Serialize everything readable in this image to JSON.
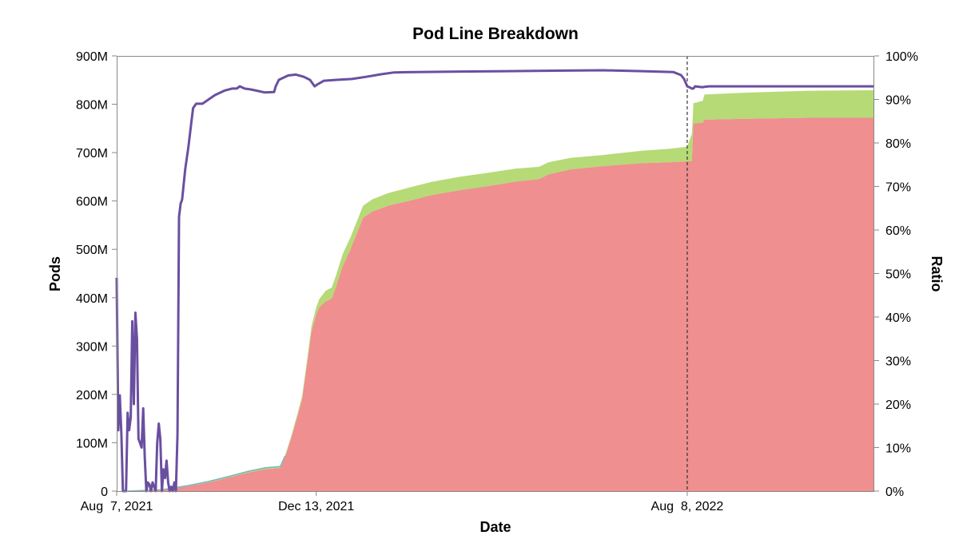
{
  "chart_data": {
    "type": "area",
    "title": "Pod Line Breakdown",
    "xlabel": "Date",
    "ylabel_left": "Pods",
    "ylabel_right": "Ratio",
    "x_ticks": [
      "Aug  7, 2021",
      "Dec 13, 2021",
      "Aug  8, 2022"
    ],
    "y_left_ticks": [
      "0",
      "100M",
      "200M",
      "300M",
      "400M",
      "500M",
      "600M",
      "700M",
      "800M",
      "900M"
    ],
    "y_right_ticks": [
      "0%",
      "10%",
      "20%",
      "30%",
      "40%",
      "50%",
      "60%",
      "70%",
      "80%",
      "90%",
      "100%"
    ],
    "ylim_left": [
      0,
      900000000
    ],
    "ylim_right": [
      0,
      1
    ],
    "grid": false,
    "legend": "none",
    "reference_line": {
      "date": "2022-08-08",
      "style": "dashed"
    },
    "colors": {
      "harvested": "#ef8f8f",
      "harvestable": "#b6da76",
      "minor_band": "#74b9c0",
      "ratio": "#6a4fa0"
    },
    "series": [
      {
        "key": "harvested",
        "kind": "stacked-area",
        "points": [
          [
            "2021-08-14",
            0
          ],
          [
            "2021-09-05",
            2000000
          ],
          [
            "2021-09-22",
            10000000
          ],
          [
            "2021-10-05",
            18000000
          ],
          [
            "2021-10-18",
            28000000
          ],
          [
            "2021-10-30",
            38000000
          ],
          [
            "2021-11-10",
            45000000
          ],
          [
            "2021-11-20",
            48000000
          ],
          [
            "2021-11-23",
            70000000
          ],
          [
            "2021-11-27",
            110000000
          ],
          [
            "2021-12-01",
            155000000
          ],
          [
            "2021-12-04",
            190000000
          ],
          [
            "2021-12-07",
            260000000
          ],
          [
            "2021-12-10",
            330000000
          ],
          [
            "2021-12-13",
            365000000
          ],
          [
            "2021-12-15",
            380000000
          ],
          [
            "2021-12-19",
            392000000
          ],
          [
            "2021-12-23",
            398000000
          ],
          [
            "2021-12-26",
            425000000
          ],
          [
            "2021-12-30",
            465000000
          ],
          [
            "2022-01-04",
            500000000
          ],
          [
            "2022-01-09",
            540000000
          ],
          [
            "2022-01-12",
            565000000
          ],
          [
            "2022-01-18",
            578000000
          ],
          [
            "2022-01-28",
            590000000
          ],
          [
            "2022-02-10",
            600000000
          ],
          [
            "2022-02-25",
            612000000
          ],
          [
            "2022-03-15",
            622000000
          ],
          [
            "2022-04-01",
            630000000
          ],
          [
            "2022-04-20",
            640000000
          ],
          [
            "2022-05-05",
            645000000
          ],
          [
            "2022-05-11",
            655000000
          ],
          [
            "2022-05-25",
            665000000
          ],
          [
            "2022-06-15",
            672000000
          ],
          [
            "2022-07-10",
            678000000
          ],
          [
            "2022-07-28",
            680000000
          ],
          [
            "2022-08-08",
            682000000
          ],
          [
            "2022-08-11",
            682000000
          ],
          [
            "2022-08-12",
            760000000
          ],
          [
            "2022-08-18",
            762000000
          ],
          [
            "2022-08-19",
            768000000
          ],
          [
            "2022-09-15",
            770000000
          ],
          [
            "2022-10-25",
            772000000
          ],
          [
            "2022-12-06",
            772000000
          ]
        ]
      },
      {
        "key": "harvestable",
        "kind": "stacked-area",
        "points": [
          [
            "2021-08-14",
            0
          ],
          [
            "2021-09-05",
            1000000
          ],
          [
            "2021-10-05",
            2000000
          ],
          [
            "2021-11-10",
            3000000
          ],
          [
            "2021-11-27",
            4000000
          ],
          [
            "2021-12-07",
            8000000
          ],
          [
            "2021-12-13",
            15000000
          ],
          [
            "2021-12-19",
            22000000
          ],
          [
            "2021-12-30",
            25000000
          ],
          [
            "2022-01-12",
            25000000
          ],
          [
            "2022-02-10",
            27000000
          ],
          [
            "2022-03-15",
            28000000
          ],
          [
            "2022-04-20",
            27000000
          ],
          [
            "2022-05-11",
            25000000
          ],
          [
            "2022-06-15",
            23000000
          ],
          [
            "2022-07-28",
            28000000
          ],
          [
            "2022-08-08",
            30000000
          ],
          [
            "2022-08-11",
            57000000
          ],
          [
            "2022-08-12",
            42000000
          ],
          [
            "2022-08-18",
            45000000
          ],
          [
            "2022-08-19",
            52000000
          ],
          [
            "2022-09-15",
            54000000
          ],
          [
            "2022-10-25",
            56000000
          ],
          [
            "2022-12-06",
            57000000
          ]
        ]
      },
      {
        "key": "ratio",
        "kind": "line",
        "axis": "right",
        "points": [
          [
            "2021-08-07",
            0.49
          ],
          [
            "2021-08-08",
            0.14
          ],
          [
            "2021-08-09",
            0.22
          ],
          [
            "2021-08-10",
            0.13
          ],
          [
            "2021-08-11",
            0.0
          ],
          [
            "2021-08-13",
            0.0
          ],
          [
            "2021-08-14",
            0.18
          ],
          [
            "2021-08-15",
            0.14
          ],
          [
            "2021-08-16",
            0.17
          ],
          [
            "2021-08-17",
            0.39
          ],
          [
            "2021-08-18",
            0.2
          ],
          [
            "2021-08-19",
            0.41
          ],
          [
            "2021-08-20",
            0.35
          ],
          [
            "2021-08-21",
            0.12
          ],
          [
            "2021-08-22",
            0.11
          ],
          [
            "2021-08-23",
            0.1
          ],
          [
            "2021-08-24",
            0.19
          ],
          [
            "2021-08-25",
            0.08
          ],
          [
            "2021-08-26",
            0.0
          ],
          [
            "2021-08-27",
            0.02
          ],
          [
            "2021-08-28",
            0.015
          ],
          [
            "2021-08-29",
            0.0
          ],
          [
            "2021-08-30",
            0.02
          ],
          [
            "2021-09-01",
            0.0
          ],
          [
            "2021-09-02",
            0.11
          ],
          [
            "2021-09-03",
            0.155
          ],
          [
            "2021-09-04",
            0.12
          ],
          [
            "2021-09-05",
            0.0
          ],
          [
            "2021-09-06",
            0.05
          ],
          [
            "2021-09-07",
            0.03
          ],
          [
            "2021-09-08",
            0.07
          ],
          [
            "2021-09-09",
            0.02
          ],
          [
            "2021-09-10",
            0.0
          ],
          [
            "2021-09-11",
            0.01
          ],
          [
            "2021-09-12",
            0.0
          ],
          [
            "2021-09-13",
            0.02
          ],
          [
            "2021-09-14",
            0.0
          ],
          [
            "2021-09-15",
            0.13
          ],
          [
            "2021-09-16",
            0.63
          ],
          [
            "2021-09-17",
            0.66
          ],
          [
            "2021-09-18",
            0.67
          ],
          [
            "2021-09-20",
            0.74
          ],
          [
            "2021-09-22",
            0.79
          ],
          [
            "2021-09-24",
            0.85
          ],
          [
            "2021-09-25",
            0.88
          ],
          [
            "2021-09-27",
            0.89
          ],
          [
            "2021-10-01",
            0.89
          ],
          [
            "2021-10-05",
            0.9
          ],
          [
            "2021-10-09",
            0.91
          ],
          [
            "2021-10-15",
            0.92
          ],
          [
            "2021-10-20",
            0.925
          ],
          [
            "2021-10-23",
            0.925
          ],
          [
            "2021-10-25",
            0.93
          ],
          [
            "2021-10-28",
            0.925
          ],
          [
            "2021-11-01",
            0.923
          ],
          [
            "2021-11-05",
            0.92
          ],
          [
            "2021-11-10",
            0.916
          ],
          [
            "2021-11-16",
            0.917
          ],
          [
            "2021-11-17",
            0.93
          ],
          [
            "2021-11-19",
            0.945
          ],
          [
            "2021-11-25",
            0.955
          ],
          [
            "2021-11-30",
            0.957
          ],
          [
            "2021-12-05",
            0.952
          ],
          [
            "2021-12-09",
            0.945
          ],
          [
            "2021-12-12",
            0.93
          ],
          [
            "2021-12-14",
            0.935
          ],
          [
            "2021-12-18",
            0.943
          ],
          [
            "2021-12-26",
            0.945
          ],
          [
            "2022-01-05",
            0.947
          ],
          [
            "2022-01-14",
            0.952
          ],
          [
            "2022-01-24",
            0.958
          ],
          [
            "2022-02-01",
            0.962
          ],
          [
            "2022-02-15",
            0.963
          ],
          [
            "2022-03-15",
            0.964
          ],
          [
            "2022-04-15",
            0.965
          ],
          [
            "2022-05-15",
            0.966
          ],
          [
            "2022-06-15",
            0.967
          ],
          [
            "2022-07-10",
            0.965
          ],
          [
            "2022-07-30",
            0.963
          ],
          [
            "2022-08-04",
            0.956
          ],
          [
            "2022-08-06",
            0.947
          ],
          [
            "2022-08-08",
            0.93
          ],
          [
            "2022-08-10",
            0.927
          ],
          [
            "2022-08-11",
            0.925
          ],
          [
            "2022-08-12",
            0.925
          ],
          [
            "2022-08-13",
            0.93
          ],
          [
            "2022-08-18",
            0.928
          ],
          [
            "2022-08-19",
            0.929
          ],
          [
            "2022-08-22",
            0.93
          ],
          [
            "2022-09-15",
            0.93
          ],
          [
            "2022-10-25",
            0.93
          ],
          [
            "2022-12-06",
            0.93
          ]
        ]
      }
    ]
  }
}
